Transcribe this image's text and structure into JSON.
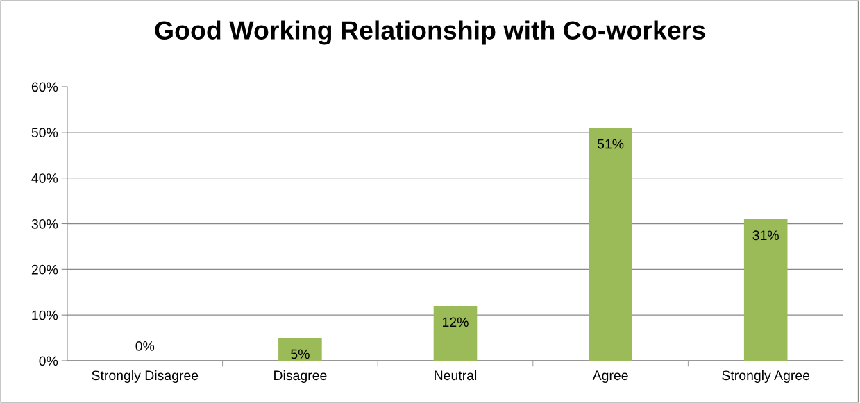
{
  "chart_data": {
    "type": "bar",
    "title": "Good Working Relationship with Co-workers",
    "categories": [
      "Strongly Disagree",
      "Disagree",
      "Neutral",
      "Agree",
      "Strongly Agree"
    ],
    "values": [
      0,
      5,
      12,
      51,
      31
    ],
    "color": "#9bbb59",
    "value_labels": [
      "0%",
      "5%",
      "12%",
      "51%",
      "31%"
    ],
    "ylim": [
      0,
      60
    ],
    "yticks": [
      {
        "value": 0,
        "label": "0%"
      },
      {
        "value": 10,
        "label": "10%"
      },
      {
        "value": 20,
        "label": "20%"
      },
      {
        "value": 30,
        "label": "30%"
      },
      {
        "value": 40,
        "label": "40%"
      },
      {
        "value": 50,
        "label": "50%"
      },
      {
        "value": 60,
        "label": "60%"
      }
    ],
    "grid": "y",
    "legend": false
  }
}
